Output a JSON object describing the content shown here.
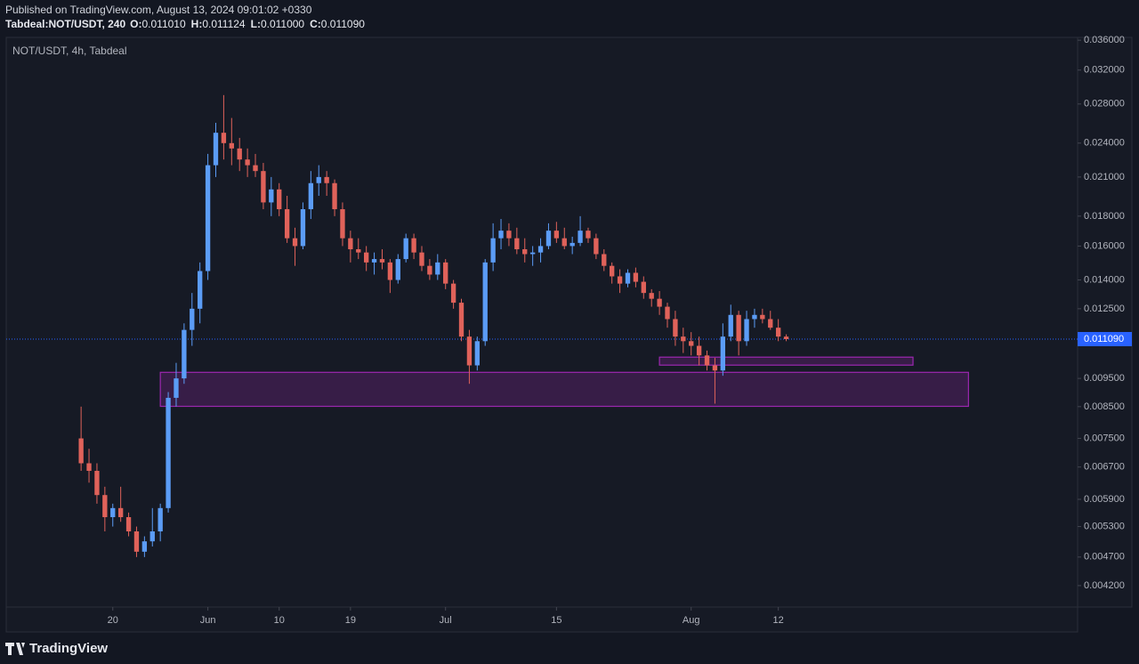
{
  "header": {
    "published": "Published on TradingView.com, August 13, 2024 09:01:02 +0330",
    "symbol": "Tabdeal:NOT/USDT, 240",
    "ohlc": [
      {
        "key": "O:",
        "value": "0.011010"
      },
      {
        "key": "H:",
        "value": "0.011124"
      },
      {
        "key": "L:",
        "value": "0.011000"
      },
      {
        "key": "C:",
        "value": "0.011090"
      }
    ]
  },
  "brand": "TradingView",
  "chart_data": {
    "type": "candlestick",
    "title": "NOT/USDT, 4h, Tabdeal",
    "log_scale": true,
    "grid": false,
    "up_color": "#5b9cf6",
    "down_color": "#e0625a",
    "x": [
      "2024-05-16",
      "2024-05-17",
      "2024-05-18",
      "2024-05-19",
      "2024-05-20",
      "2024-05-21",
      "2024-05-22",
      "2024-05-23",
      "2024-05-24",
      "2024-05-25",
      "2024-05-26",
      "2024-05-27",
      "2024-05-28",
      "2024-05-29",
      "2024-05-30",
      "2024-05-31",
      "2024-06-01",
      "2024-06-02",
      "2024-06-03",
      "2024-06-04",
      "2024-06-05",
      "2024-06-06",
      "2024-06-07",
      "2024-06-08",
      "2024-06-09",
      "2024-06-10",
      "2024-06-11",
      "2024-06-12",
      "2024-06-13",
      "2024-06-14",
      "2024-06-15",
      "2024-06-16",
      "2024-06-17",
      "2024-06-18",
      "2024-06-19",
      "2024-06-20",
      "2024-06-21",
      "2024-06-22",
      "2024-06-23",
      "2024-06-24",
      "2024-06-25",
      "2024-06-26",
      "2024-06-27",
      "2024-06-28",
      "2024-06-29",
      "2024-06-30",
      "2024-07-01",
      "2024-07-02",
      "2024-07-03",
      "2024-07-04",
      "2024-07-05",
      "2024-07-06",
      "2024-07-07",
      "2024-07-08",
      "2024-07-09",
      "2024-07-10",
      "2024-07-11",
      "2024-07-12",
      "2024-07-13",
      "2024-07-14",
      "2024-07-15",
      "2024-07-16",
      "2024-07-17",
      "2024-07-18",
      "2024-07-19",
      "2024-07-20",
      "2024-07-21",
      "2024-07-22",
      "2024-07-23",
      "2024-07-24",
      "2024-07-25",
      "2024-07-26",
      "2024-07-27",
      "2024-07-28",
      "2024-07-29",
      "2024-07-30",
      "2024-07-31",
      "2024-08-01",
      "2024-08-02",
      "2024-08-03",
      "2024-08-04",
      "2024-08-05",
      "2024-08-06",
      "2024-08-07",
      "2024-08-08",
      "2024-08-09",
      "2024-08-10",
      "2024-08-11",
      "2024-08-12",
      "2024-08-13"
    ],
    "open": [
      0.0075,
      0.0068,
      0.0066,
      0.006,
      0.0055,
      0.0057,
      0.0055,
      0.0052,
      0.0048,
      0.005,
      0.0052,
      0.0057,
      0.0088,
      0.0095,
      0.0115,
      0.0125,
      0.0145,
      0.022,
      0.025,
      0.024,
      0.0235,
      0.0225,
      0.022,
      0.0215,
      0.019,
      0.02,
      0.0185,
      0.0165,
      0.016,
      0.0185,
      0.0205,
      0.021,
      0.0205,
      0.0185,
      0.0165,
      0.0158,
      0.0156,
      0.015,
      0.0152,
      0.015,
      0.014,
      0.0152,
      0.0165,
      0.0156,
      0.0148,
      0.0143,
      0.015,
      0.0138,
      0.0128,
      0.0112,
      0.01,
      0.011,
      0.015,
      0.0165,
      0.017,
      0.0165,
      0.0158,
      0.0155,
      0.0156,
      0.016,
      0.017,
      0.0165,
      0.016,
      0.0162,
      0.017,
      0.0165,
      0.0155,
      0.0148,
      0.0142,
      0.0138,
      0.0144,
      0.0139,
      0.0133,
      0.013,
      0.0126,
      0.012,
      0.0112,
      0.011,
      0.0108,
      0.0104,
      0.01,
      0.0098,
      0.0112,
      0.0122,
      0.011,
      0.012,
      0.0122,
      0.012,
      0.0116,
      0.0112
    ],
    "high": [
      0.0085,
      0.0072,
      0.0068,
      0.0062,
      0.0058,
      0.0062,
      0.0056,
      0.0053,
      0.0051,
      0.0057,
      0.0058,
      0.009,
      0.0101,
      0.0118,
      0.0133,
      0.015,
      0.023,
      0.026,
      0.029,
      0.0265,
      0.0245,
      0.0235,
      0.023,
      0.0222,
      0.021,
      0.0205,
      0.0195,
      0.0172,
      0.019,
      0.0215,
      0.022,
      0.0215,
      0.0208,
      0.019,
      0.017,
      0.0165,
      0.016,
      0.0156,
      0.0158,
      0.0152,
      0.0155,
      0.0168,
      0.0168,
      0.016,
      0.0152,
      0.0155,
      0.0152,
      0.014,
      0.013,
      0.0115,
      0.0112,
      0.0152,
      0.0175,
      0.0178,
      0.0175,
      0.0172,
      0.0165,
      0.016,
      0.0165,
      0.0175,
      0.0176,
      0.0172,
      0.0166,
      0.018,
      0.0172,
      0.0168,
      0.0158,
      0.015,
      0.0146,
      0.0146,
      0.0147,
      0.0142,
      0.0135,
      0.0134,
      0.0128,
      0.0124,
      0.0116,
      0.0114,
      0.0112,
      0.0106,
      0.0103,
      0.0118,
      0.0127,
      0.0124,
      0.0124,
      0.0125,
      0.0125,
      0.0124,
      0.012,
      0.0113
    ],
    "low": [
      0.0066,
      0.0063,
      0.0058,
      0.0052,
      0.0053,
      0.0054,
      0.0051,
      0.0047,
      0.0047,
      0.0049,
      0.005,
      0.0056,
      0.0085,
      0.0093,
      0.0108,
      0.0118,
      0.014,
      0.021,
      0.0225,
      0.022,
      0.0215,
      0.021,
      0.021,
      0.0185,
      0.018,
      0.018,
      0.0162,
      0.0148,
      0.0158,
      0.0178,
      0.0195,
      0.0195,
      0.018,
      0.016,
      0.015,
      0.0152,
      0.0145,
      0.0143,
      0.0146,
      0.0133,
      0.0138,
      0.015,
      0.0152,
      0.0145,
      0.014,
      0.014,
      0.0135,
      0.0125,
      0.011,
      0.0093,
      0.0098,
      0.0108,
      0.0145,
      0.0158,
      0.016,
      0.0155,
      0.015,
      0.0148,
      0.015,
      0.0158,
      0.0162,
      0.0158,
      0.0155,
      0.016,
      0.0162,
      0.0152,
      0.0145,
      0.0138,
      0.0133,
      0.0136,
      0.0136,
      0.013,
      0.0126,
      0.0122,
      0.0116,
      0.0108,
      0.0105,
      0.0104,
      0.01,
      0.0098,
      0.0086,
      0.0096,
      0.011,
      0.0104,
      0.0108,
      0.0116,
      0.0118,
      0.0115,
      0.011,
      0.011
    ],
    "close": [
      0.0068,
      0.0066,
      0.006,
      0.0055,
      0.0057,
      0.0055,
      0.0052,
      0.0048,
      0.005,
      0.0052,
      0.0057,
      0.0088,
      0.0095,
      0.0115,
      0.0125,
      0.0145,
      0.022,
      0.025,
      0.024,
      0.0235,
      0.0225,
      0.022,
      0.0215,
      0.019,
      0.02,
      0.0185,
      0.0165,
      0.016,
      0.0185,
      0.0205,
      0.021,
      0.0205,
      0.0185,
      0.0165,
      0.0158,
      0.0156,
      0.015,
      0.0152,
      0.015,
      0.014,
      0.0152,
      0.0165,
      0.0156,
      0.0148,
      0.0143,
      0.015,
      0.0138,
      0.0128,
      0.0112,
      0.01,
      0.011,
      0.015,
      0.0165,
      0.017,
      0.0165,
      0.0158,
      0.0155,
      0.0156,
      0.016,
      0.017,
      0.0165,
      0.016,
      0.0162,
      0.017,
      0.0165,
      0.0155,
      0.0148,
      0.0142,
      0.0138,
      0.0144,
      0.0139,
      0.0133,
      0.013,
      0.0126,
      0.012,
      0.0112,
      0.011,
      0.0108,
      0.0104,
      0.01,
      0.0098,
      0.0112,
      0.0122,
      0.011,
      0.012,
      0.0122,
      0.012,
      0.0116,
      0.0112,
      0.01109
    ],
    "xlim": [
      "2024-05-07",
      "2024-09-19"
    ],
    "xticks": [
      {
        "value": "2024-05-20",
        "label": "20"
      },
      {
        "value": "2024-06-01",
        "label": "Jun"
      },
      {
        "value": "2024-06-10",
        "label": "10"
      },
      {
        "value": "2024-06-19",
        "label": "19"
      },
      {
        "value": "2024-07-01",
        "label": "Jul"
      },
      {
        "value": "2024-07-15",
        "label": "15"
      },
      {
        "value": "2024-08-01",
        "label": "Aug"
      },
      {
        "value": "2024-08-12",
        "label": "12"
      }
    ],
    "ylim": [
      0.00386,
      0.0364
    ],
    "yticks": [
      {
        "value": 0.036,
        "label": "0.036000"
      },
      {
        "value": 0.032,
        "label": "0.032000"
      },
      {
        "value": 0.028,
        "label": "0.028000"
      },
      {
        "value": 0.024,
        "label": "0.024000"
      },
      {
        "value": 0.021,
        "label": "0.021000"
      },
      {
        "value": 0.018,
        "label": "0.018000"
      },
      {
        "value": 0.016,
        "label": "0.016000"
      },
      {
        "value": 0.014,
        "label": "0.014000"
      },
      {
        "value": 0.0125,
        "label": "0.012500"
      },
      {
        "value": 0.0095,
        "label": "0.009500"
      },
      {
        "value": 0.0085,
        "label": "0.008500"
      },
      {
        "value": 0.0075,
        "label": "0.007500"
      },
      {
        "value": 0.0067,
        "label": "0.006700"
      },
      {
        "value": 0.0059,
        "label": "0.005900"
      },
      {
        "value": 0.0053,
        "label": "0.005300"
      },
      {
        "value": 0.0047,
        "label": "0.004700"
      },
      {
        "value": 0.0042,
        "label": "0.004200"
      }
    ],
    "last_price": {
      "value": 0.01109,
      "label": "0.011090"
    },
    "last_price_color": "#2962ff",
    "zones": [
      {
        "x": [
          "2024-05-26",
          "2024-09-05"
        ],
        "y": [
          0.00851,
          0.00973
        ],
        "color": "#9c27b0"
      },
      {
        "x": [
          "2024-07-28",
          "2024-08-29"
        ],
        "y": [
          0.01001,
          0.01033
        ],
        "color": "#9c27b0"
      }
    ]
  }
}
